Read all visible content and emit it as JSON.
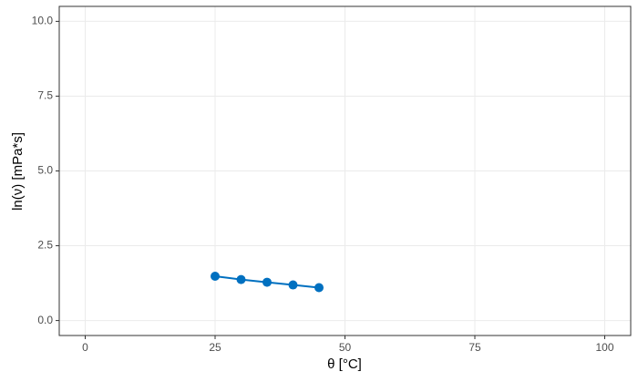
{
  "chart_data": {
    "type": "line",
    "x_label": "θ [°C]",
    "y_label": "ln(ν) [mPa*s]",
    "x": [
      25,
      30,
      35,
      40,
      45
    ],
    "series": [
      {
        "color": "#0070c0",
        "values": [
          1.48,
          1.37,
          1.28,
          1.19,
          1.1
        ]
      }
    ],
    "xlim": [
      -5,
      105
    ],
    "xticks": [
      0,
      25,
      50,
      75,
      100
    ],
    "ylim": [
      -0.5,
      10.5
    ],
    "yticks": [
      {
        "value": 0,
        "label": "0.0"
      },
      2.5,
      {
        "value": 5,
        "label": "5.0"
      },
      7.5,
      {
        "value": 10,
        "label": "10.0"
      }
    ],
    "grid": true
  }
}
